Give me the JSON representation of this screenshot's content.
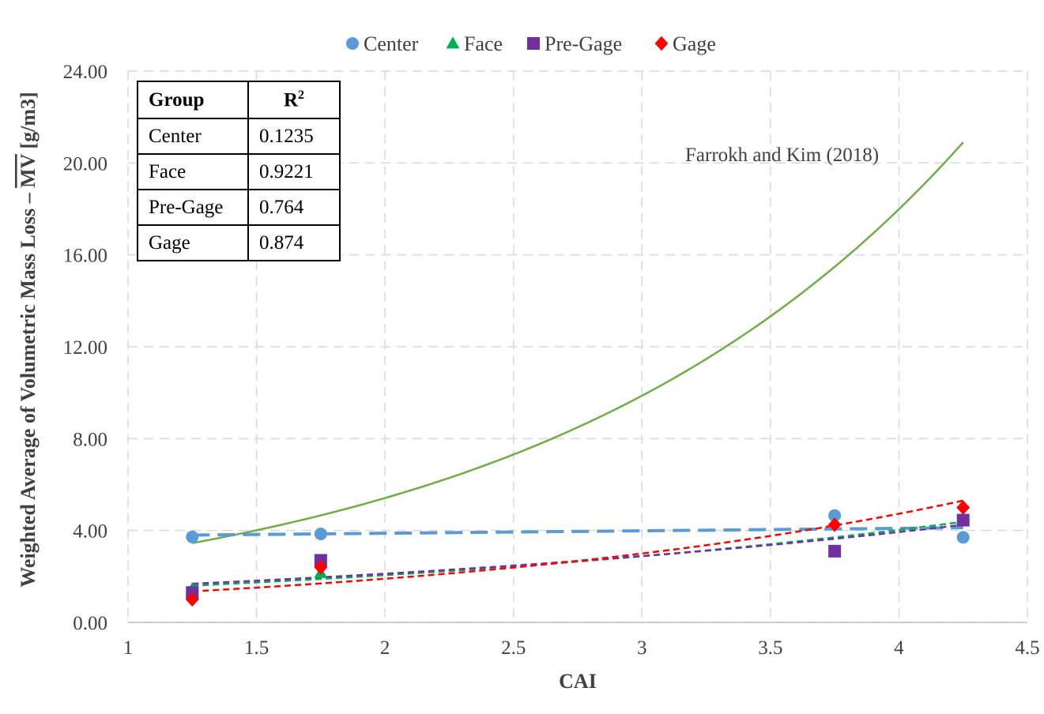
{
  "chart_data": {
    "type": "scatter",
    "xlabel": "CAI",
    "ylabel": "Weighted Average of Volumetric Mass Loss – ",
    "ylabel_overline": "MV",
    "ylabel_unit": " [g/m3]",
    "xlim": [
      1,
      4.5
    ],
    "ylim": [
      0,
      24
    ],
    "xticks": [
      "1",
      "1.5",
      "2",
      "2.5",
      "3",
      "3.5",
      "4",
      "4.5"
    ],
    "yticks": [
      "0.00",
      "4.00",
      "8.00",
      "12.00",
      "16.00",
      "20.00",
      "24.00"
    ],
    "grid": true,
    "legend_position": "top-center",
    "series": [
      {
        "name": "Center",
        "marker": "circle",
        "color": "#5b9bd5",
        "x": [
          1.25,
          1.75,
          3.75,
          4.25
        ],
        "y": [
          3.72,
          3.85,
          4.65,
          3.7
        ],
        "trend": {
          "kind": "linear",
          "x": [
            1.25,
            4.25
          ],
          "y": [
            3.8,
            4.12
          ],
          "style": "long-dash"
        }
      },
      {
        "name": "Face",
        "marker": "triangle",
        "color": "#00b050",
        "x": [
          1.25,
          1.75,
          3.75,
          4.25
        ],
        "y": [
          1.45,
          2.15,
          3.1,
          4.5
        ],
        "trend": {
          "kind": "exponential",
          "x": [
            1.25,
            4.25
          ],
          "y": [
            1.6,
            4.38
          ],
          "style": "dash"
        }
      },
      {
        "name": "Pre-Gage",
        "marker": "square",
        "color": "#7030a0",
        "x": [
          1.25,
          1.75,
          3.75,
          4.25
        ],
        "y": [
          1.3,
          2.7,
          3.1,
          4.45
        ],
        "trend": {
          "kind": "exponential",
          "x": [
            1.25,
            4.25
          ],
          "y": [
            1.68,
            4.25
          ],
          "style": "dash"
        }
      },
      {
        "name": "Gage",
        "marker": "diamond",
        "color": "#ff0000",
        "x": [
          1.25,
          1.75,
          3.75,
          4.25
        ],
        "y": [
          1.0,
          2.4,
          4.25,
          5.0
        ],
        "trend": {
          "kind": "exponential",
          "x": [
            1.25,
            4.25
          ],
          "y": [
            1.35,
            5.3
          ],
          "style": "dash"
        }
      }
    ],
    "reference_curve": {
      "name": "Farrokh and Kim (2018)",
      "color": "#70ad47",
      "kind": "exponential",
      "x": [
        1.25,
        4.25
      ],
      "y": [
        3.45,
        20.9
      ]
    },
    "annotation": "Farrokh and Kim (2018)"
  },
  "r2_table": {
    "header": [
      "Group",
      "R"
    ],
    "header_sup": "2",
    "rows": [
      [
        "Center",
        "0.1235"
      ],
      [
        "Face",
        "0.9221"
      ],
      [
        "Pre-Gage",
        "0.764"
      ],
      [
        "Gage",
        "0.874"
      ]
    ]
  }
}
